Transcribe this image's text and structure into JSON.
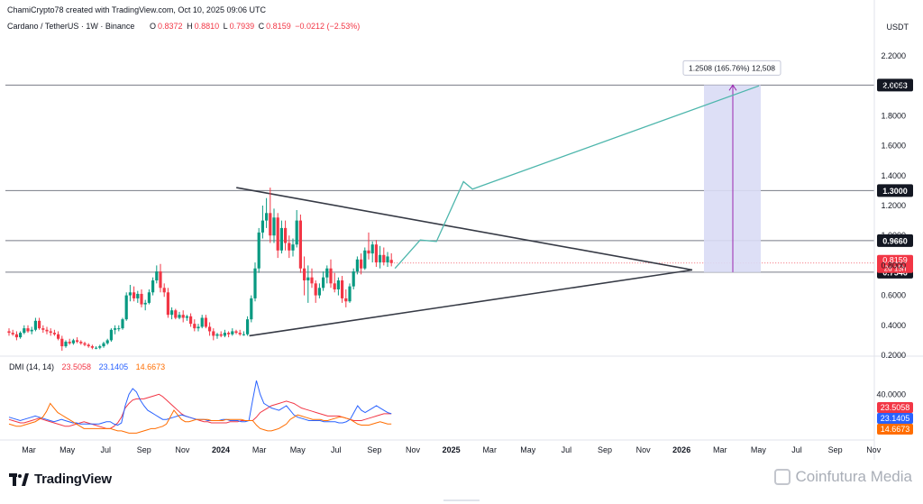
{
  "header": {
    "credit": "ChamiCrypto78 created with TradingView.com, Oct 10, 2025 09:06 UTC",
    "symbol": "Cardano / TetherUS · 1W · Binance",
    "ohlc": [
      {
        "k": "O",
        "v": "0.8372"
      },
      {
        "k": "H",
        "v": "0.8810"
      },
      {
        "k": "L",
        "v": "0.7939"
      },
      {
        "k": "C",
        "v": "0.8159"
      }
    ],
    "change": "−0.0212 (−2.53%)",
    "currency": "USDT"
  },
  "brand": "TradingView",
  "watermark": "Coinfutura Media",
  "colors": {
    "up": "#089981",
    "down": "#f23645",
    "triangle": "#363a45",
    "level": "#787b86",
    "projection": "#4db6ac",
    "target_box": "#d9dcf5",
    "target_line": "#9c27b0",
    "dmi_plus": "#2962ff",
    "dmi_minus": "#f23645",
    "adx": "#ff6d00"
  },
  "chart_data": [
    {
      "type": "candlestick",
      "title": "Cardano / TetherUS · 1W · Binance",
      "ylim": [
        0.1,
        2.3
      ],
      "y_ticks": [
        "2.2000",
        "2.0000",
        "1.8000",
        "1.6000",
        "1.4000",
        "1.2000",
        "1.0000",
        "0.8000",
        "0.6000",
        "0.4000",
        "0.2000"
      ],
      "x_ticks": [
        "Mar",
        "May",
        "Jul",
        "Sep",
        "Nov",
        "2024",
        "Mar",
        "May",
        "Jul",
        "Sep",
        "Nov",
        "2025",
        "Mar",
        "May",
        "Jul",
        "Sep",
        "Nov",
        "2026",
        "Mar",
        "May",
        "Jul",
        "Sep",
        "Nov"
      ],
      "horizontal_levels": [
        {
          "value": 2.0053,
          "label": "2.0053"
        },
        {
          "value": 1.3,
          "label": "1.3000"
        },
        {
          "value": 0.966,
          "label": "0.9660"
        },
        {
          "value": 0.7546,
          "label": "0.7546"
        }
      ],
      "current_price": {
        "value": 0.8159,
        "label": "0.8159",
        "countdown": "2d 15h"
      },
      "measurement": {
        "label": "1.2508 (165.76%) 12,508",
        "from": 0.7546,
        "to": 2.0053
      },
      "triangle": {
        "upper": [
          [
            11.0,
            1.32
          ],
          [
            19.0,
            0.77
          ]
        ],
        "lower": [
          [
            11.0,
            0.33
          ],
          [
            19.0,
            0.77
          ]
        ]
      },
      "projection_path": [
        [
          17.0,
          0.77
        ],
        [
          17.8,
          0.97
        ],
        [
          18.3,
          0.96
        ],
        [
          18.9,
          1.35
        ],
        [
          19.2,
          1.3
        ],
        [
          21.1,
          2.0
        ]
      ],
      "candles": [
        [
          0.36,
          0.38,
          0.33,
          0.35
        ],
        [
          0.35,
          0.37,
          0.33,
          0.34
        ],
        [
          0.34,
          0.36,
          0.3,
          0.32
        ],
        [
          0.32,
          0.36,
          0.31,
          0.35
        ],
        [
          0.35,
          0.4,
          0.34,
          0.38
        ],
        [
          0.38,
          0.4,
          0.35,
          0.36
        ],
        [
          0.36,
          0.39,
          0.34,
          0.37
        ],
        [
          0.37,
          0.45,
          0.36,
          0.43
        ],
        [
          0.43,
          0.45,
          0.37,
          0.38
        ],
        [
          0.38,
          0.4,
          0.35,
          0.37
        ],
        [
          0.37,
          0.39,
          0.34,
          0.36
        ],
        [
          0.36,
          0.38,
          0.33,
          0.35
        ],
        [
          0.35,
          0.37,
          0.33,
          0.34
        ],
        [
          0.34,
          0.36,
          0.3,
          0.31
        ],
        [
          0.31,
          0.33,
          0.23,
          0.26
        ],
        [
          0.26,
          0.3,
          0.25,
          0.29
        ],
        [
          0.29,
          0.31,
          0.27,
          0.28
        ],
        [
          0.28,
          0.31,
          0.27,
          0.3
        ],
        [
          0.3,
          0.32,
          0.28,
          0.29
        ],
        [
          0.29,
          0.3,
          0.27,
          0.28
        ],
        [
          0.28,
          0.29,
          0.26,
          0.27
        ],
        [
          0.27,
          0.28,
          0.25,
          0.26
        ],
        [
          0.26,
          0.27,
          0.24,
          0.25
        ],
        [
          0.25,
          0.26,
          0.24,
          0.25
        ],
        [
          0.25,
          0.27,
          0.24,
          0.26
        ],
        [
          0.26,
          0.29,
          0.25,
          0.28
        ],
        [
          0.28,
          0.31,
          0.27,
          0.3
        ],
        [
          0.3,
          0.38,
          0.29,
          0.37
        ],
        [
          0.37,
          0.4,
          0.34,
          0.38
        ],
        [
          0.38,
          0.4,
          0.36,
          0.38
        ],
        [
          0.38,
          0.45,
          0.37,
          0.44
        ],
        [
          0.44,
          0.62,
          0.43,
          0.6
        ],
        [
          0.6,
          0.67,
          0.56,
          0.62
        ],
        [
          0.62,
          0.66,
          0.56,
          0.58
        ],
        [
          0.58,
          0.63,
          0.55,
          0.61
        ],
        [
          0.61,
          0.64,
          0.52,
          0.54
        ],
        [
          0.54,
          0.57,
          0.5,
          0.55
        ],
        [
          0.55,
          0.64,
          0.54,
          0.62
        ],
        [
          0.62,
          0.72,
          0.6,
          0.7
        ],
        [
          0.7,
          0.8,
          0.68,
          0.76
        ],
        [
          0.76,
          0.81,
          0.62,
          0.65
        ],
        [
          0.65,
          0.68,
          0.59,
          0.62
        ],
        [
          0.62,
          0.65,
          0.45,
          0.47
        ],
        [
          0.47,
          0.52,
          0.44,
          0.5
        ],
        [
          0.5,
          0.51,
          0.44,
          0.45
        ],
        [
          0.45,
          0.49,
          0.44,
          0.47
        ],
        [
          0.47,
          0.5,
          0.42,
          0.45
        ],
        [
          0.45,
          0.47,
          0.43,
          0.46
        ],
        [
          0.46,
          0.48,
          0.39,
          0.41
        ],
        [
          0.41,
          0.44,
          0.36,
          0.38
        ],
        [
          0.38,
          0.41,
          0.36,
          0.39
        ],
        [
          0.39,
          0.47,
          0.38,
          0.45
        ],
        [
          0.45,
          0.47,
          0.38,
          0.39
        ],
        [
          0.39,
          0.42,
          0.33,
          0.36
        ],
        [
          0.36,
          0.38,
          0.3,
          0.33
        ],
        [
          0.33,
          0.35,
          0.31,
          0.34
        ],
        [
          0.34,
          0.36,
          0.32,
          0.33
        ],
        [
          0.33,
          0.37,
          0.32,
          0.35
        ],
        [
          0.35,
          0.36,
          0.32,
          0.34
        ],
        [
          0.34,
          0.38,
          0.33,
          0.36
        ],
        [
          0.36,
          0.37,
          0.34,
          0.35
        ],
        [
          0.35,
          0.37,
          0.33,
          0.34
        ],
        [
          0.34,
          0.36,
          0.33,
          0.34
        ],
        [
          0.34,
          0.46,
          0.33,
          0.44
        ],
        [
          0.44,
          0.6,
          0.42,
          0.58
        ],
        [
          0.58,
          0.82,
          0.56,
          0.78
        ],
        [
          0.78,
          1.05,
          0.75,
          1.02
        ],
        [
          1.02,
          1.2,
          0.98,
          1.1
        ],
        [
          1.1,
          1.25,
          1.05,
          1.15
        ],
        [
          1.15,
          1.32,
          0.95,
          1.0
        ],
        [
          1.0,
          1.18,
          0.95,
          1.12
        ],
        [
          1.12,
          1.15,
          0.85,
          0.9
        ],
        [
          0.9,
          1.1,
          0.88,
          1.05
        ],
        [
          1.05,
          1.1,
          0.9,
          0.95
        ],
        [
          0.95,
          1.0,
          0.85,
          0.9
        ],
        [
          0.9,
          0.98,
          0.86,
          0.94
        ],
        [
          0.94,
          1.17,
          0.92,
          1.1
        ],
        [
          1.1,
          1.14,
          0.75,
          0.78
        ],
        [
          0.78,
          0.86,
          0.6,
          0.7
        ],
        [
          0.7,
          0.8,
          0.55,
          0.72
        ],
        [
          0.72,
          0.78,
          0.65,
          0.68
        ],
        [
          0.68,
          0.7,
          0.55,
          0.6
        ],
        [
          0.6,
          0.68,
          0.58,
          0.65
        ],
        [
          0.65,
          0.76,
          0.63,
          0.72
        ],
        [
          0.72,
          0.8,
          0.68,
          0.78
        ],
        [
          0.78,
          0.84,
          0.65,
          0.68
        ],
        [
          0.68,
          0.75,
          0.62,
          0.64
        ],
        [
          0.64,
          0.72,
          0.6,
          0.7
        ],
        [
          0.7,
          0.73,
          0.55,
          0.58
        ],
        [
          0.58,
          0.64,
          0.52,
          0.56
        ],
        [
          0.56,
          0.68,
          0.55,
          0.66
        ],
        [
          0.66,
          0.78,
          0.64,
          0.76
        ],
        [
          0.76,
          0.86,
          0.74,
          0.84
        ],
        [
          0.84,
          0.88,
          0.74,
          0.78
        ],
        [
          0.78,
          0.92,
          0.77,
          0.9
        ],
        [
          0.9,
          1.02,
          0.84,
          0.88
        ],
        [
          0.88,
          0.96,
          0.82,
          0.94
        ],
        [
          0.94,
          0.97,
          0.79,
          0.82
        ],
        [
          0.82,
          0.93,
          0.78,
          0.87
        ],
        [
          0.87,
          0.92,
          0.8,
          0.82
        ],
        [
          0.82,
          0.89,
          0.79,
          0.86
        ],
        [
          0.8372,
          0.881,
          0.7939,
          0.8159
        ]
      ]
    },
    {
      "type": "line",
      "title": "DMI (14, 14)",
      "ylim": [
        0,
        60
      ],
      "y_ticks": [
        "40.0000"
      ],
      "series": [
        {
          "name": "23.5058",
          "color": "#f23645",
          "values": [
            18,
            17,
            16,
            15,
            15,
            16,
            17,
            18,
            19,
            18,
            17,
            16,
            15,
            14,
            13,
            12,
            12,
            13,
            14,
            15,
            16,
            15,
            14,
            13,
            12,
            11,
            10,
            10,
            12,
            15,
            20,
            28,
            32,
            35,
            36,
            36,
            36,
            37,
            38,
            39,
            40,
            38,
            35,
            32,
            29,
            26,
            23,
            21,
            20,
            19,
            18,
            17,
            16,
            16,
            15,
            15,
            15,
            15,
            15,
            16,
            16,
            16,
            17,
            17,
            17,
            17,
            20,
            24,
            26,
            28,
            30,
            31,
            32,
            33,
            34,
            33,
            32,
            30,
            28,
            27,
            26,
            25,
            24,
            23,
            22,
            21,
            21,
            21,
            21,
            20,
            19,
            18,
            17,
            17,
            17,
            18,
            19,
            20,
            21,
            22,
            23,
            23,
            23
          ]
        },
        {
          "name": "23.1405",
          "color": "#2962ff",
          "values": [
            20,
            19,
            18,
            17,
            18,
            19,
            20,
            21,
            20,
            19,
            18,
            17,
            16,
            17,
            18,
            17,
            16,
            15,
            15,
            14,
            14,
            14,
            14,
            14,
            14,
            15,
            16,
            16,
            14,
            13,
            15,
            30,
            40,
            45,
            42,
            35,
            30,
            26,
            24,
            22,
            20,
            18,
            18,
            19,
            20,
            21,
            22,
            21,
            20,
            19,
            18,
            18,
            18,
            17,
            17,
            17,
            17,
            18,
            18,
            17,
            17,
            17,
            16,
            16,
            17,
            35,
            52,
            40,
            32,
            30,
            28,
            27,
            26,
            28,
            30,
            26,
            22,
            20,
            19,
            18,
            17,
            17,
            17,
            17,
            16,
            16,
            16,
            16,
            15,
            15,
            16,
            18,
            24,
            30,
            26,
            24,
            26,
            28,
            30,
            28,
            26,
            24,
            23
          ]
        },
        {
          "name": "14.6673",
          "color": "#ff6d00",
          "values": [
            14,
            13,
            12,
            12,
            13,
            14,
            15,
            16,
            18,
            20,
            25,
            32,
            28,
            24,
            22,
            20,
            18,
            16,
            14,
            12,
            10,
            10,
            10,
            10,
            10,
            10,
            10,
            10,
            9,
            8,
            8,
            7,
            6,
            6,
            6,
            7,
            8,
            9,
            10,
            10,
            11,
            12,
            14,
            20,
            26,
            22,
            18,
            16,
            16,
            17,
            18,
            18,
            18,
            18,
            17,
            17,
            17,
            17,
            18,
            18,
            18,
            18,
            18,
            17,
            17,
            17,
            13,
            10,
            9,
            8,
            8,
            9,
            10,
            12,
            14,
            18,
            20,
            22,
            21,
            20,
            19,
            18,
            18,
            18,
            17,
            17,
            18,
            19,
            20,
            20,
            19,
            18,
            16,
            14,
            13,
            13,
            13,
            14,
            15,
            16,
            15,
            14,
            14
          ]
        }
      ]
    }
  ]
}
